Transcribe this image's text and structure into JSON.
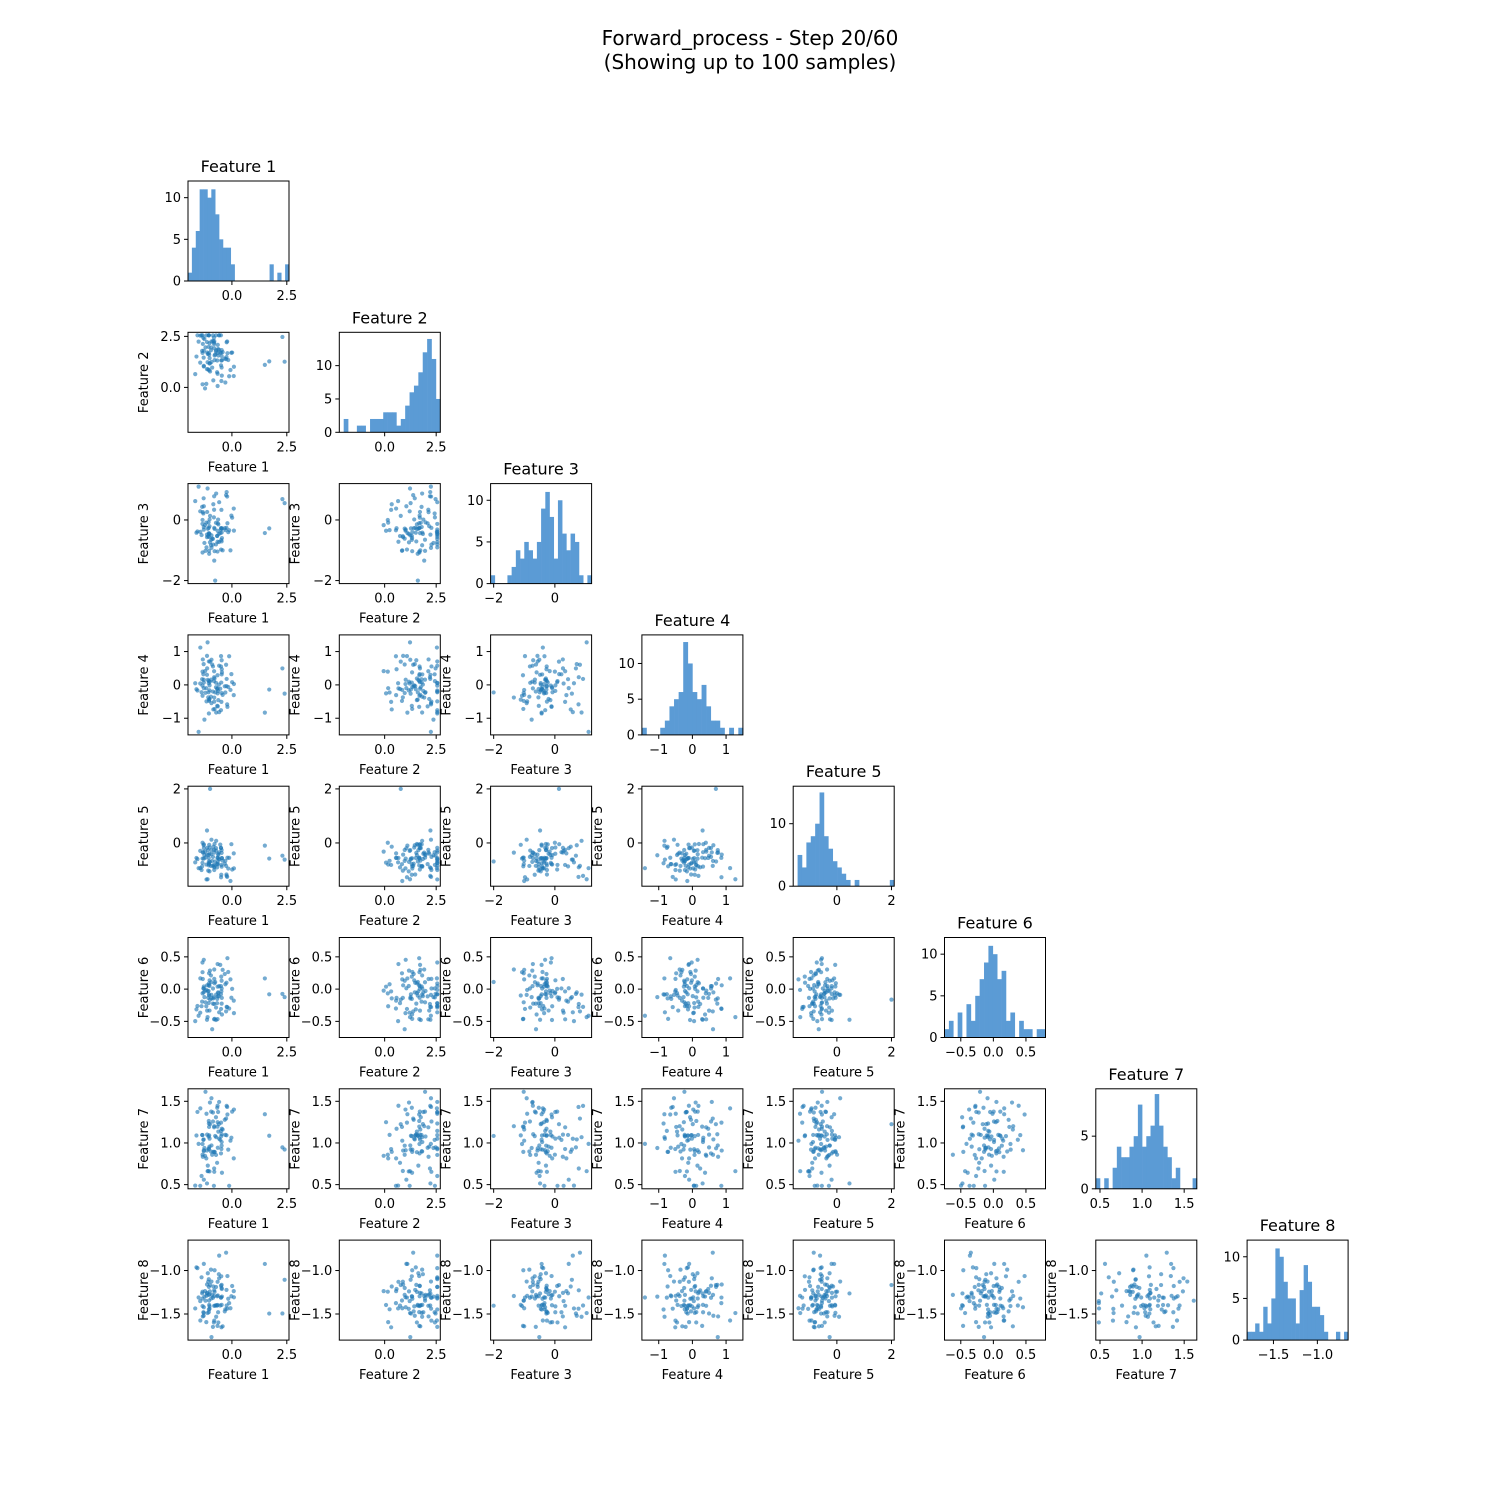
{
  "figure": {
    "title_line1": "Forward_process - Step 20/60",
    "title_line2": "(Showing up to 100 samples)"
  },
  "chart_data": {
    "type": "scatter",
    "layout": "pair-plot-lower-triangle",
    "n_samples": 100,
    "bar_color": "#5b9bd5",
    "point_color": "#1f77b4",
    "features": [
      {
        "name": "Feature 1",
        "range": [
          -2.0,
          2.6
        ],
        "ticks": [
          0.0,
          2.5
        ],
        "tick_labels": [
          "0.0",
          "2.5"
        ],
        "mean": -0.8,
        "std": 0.45,
        "outliers": [
          1.5,
          1.7,
          2.3,
          2.4
        ],
        "hist": {
          "ticks": [
            0,
            5,
            10
          ],
          "ymax": 12,
          "counts": [
            1,
            4,
            6,
            11,
            11,
            10,
            11,
            8,
            5,
            4,
            4,
            2,
            0,
            0,
            0,
            0,
            0,
            0,
            0,
            0,
            0,
            2,
            0,
            1,
            0,
            2
          ]
        }
      },
      {
        "name": "Feature 2",
        "range": [
          -2.2,
          2.7
        ],
        "ticks": [
          0.0,
          2.5
        ],
        "tick_labels": [
          "0.0",
          "2.5"
        ],
        "mean": 1.5,
        "std": 0.9,
        "outliers": [],
        "hist": {
          "ticks": [
            0,
            5,
            10
          ],
          "ymax": 15,
          "counts": [
            0,
            2,
            0,
            0,
            1,
            1,
            0,
            2,
            2,
            2,
            3,
            3,
            3,
            1,
            2,
            4,
            6,
            7,
            9,
            12,
            14,
            11,
            5
          ]
        }
      },
      {
        "name": "Feature 3",
        "range": [
          -2.1,
          1.2
        ],
        "ticks": [
          -2,
          0
        ],
        "tick_labels": [
          "−2",
          "0"
        ],
        "mean": -0.3,
        "std": 0.55,
        "outliers": [],
        "hist": {
          "ticks": [
            0,
            5,
            10
          ],
          "ymax": 12,
          "counts": [
            1,
            0,
            0,
            0,
            1,
            2,
            4,
            3,
            5,
            4,
            3,
            5,
            9,
            11,
            8,
            3,
            10,
            6,
            4,
            6,
            5,
            1,
            0,
            1
          ]
        }
      },
      {
        "name": "Feature 4",
        "range": [
          -1.5,
          1.5
        ],
        "ticks": [
          -1,
          0,
          1
        ],
        "tick_labels": [
          "−1",
          "0",
          "1"
        ],
        "mean": 0.0,
        "std": 0.45,
        "outliers": [],
        "hist": {
          "ticks": [
            0,
            5,
            10
          ],
          "ymax": 14,
          "counts": [
            1,
            0,
            0,
            0,
            1,
            2,
            4,
            5,
            6,
            13,
            10,
            6,
            5,
            7,
            4,
            2,
            2,
            1,
            0,
            1,
            0,
            1
          ]
        }
      },
      {
        "name": "Feature 5",
        "range": [
          -1.6,
          2.1
        ],
        "ticks": [
          0,
          2
        ],
        "tick_labels": [
          "0",
          "2"
        ],
        "mean": -0.6,
        "std": 0.35,
        "outliers": [
          2.0
        ],
        "hist": {
          "ticks": [
            0,
            10
          ],
          "ymax": 16,
          "counts": [
            0,
            5,
            3,
            7,
            8,
            10,
            15,
            8,
            6,
            4,
            3,
            2,
            1,
            0,
            1,
            0,
            0,
            0,
            0,
            0,
            0,
            0,
            1
          ]
        }
      },
      {
        "name": "Feature 6",
        "range": [
          -0.75,
          0.8
        ],
        "ticks": [
          -0.5,
          0.0,
          0.5
        ],
        "tick_labels": [
          "−0.5",
          "0.0",
          "0.5"
        ],
        "mean": -0.05,
        "std": 0.25,
        "outliers": [],
        "hist": {
          "ticks": [
            0,
            5,
            10
          ],
          "ymax": 12,
          "counts": [
            1,
            2,
            0,
            3,
            0,
            4,
            2,
            5,
            7,
            9,
            11,
            10,
            7,
            8,
            2,
            3,
            0,
            2,
            1,
            1,
            0,
            1,
            1
          ]
        }
      },
      {
        "name": "Feature 7",
        "range": [
          0.45,
          1.65
        ],
        "ticks": [
          0.5,
          1.0,
          1.5
        ],
        "tick_labels": [
          "0.5",
          "1.0",
          "1.5"
        ],
        "mean": 1.05,
        "std": 0.25,
        "outliers": [],
        "hist": {
          "ticks": [
            0,
            5
          ],
          "ymax": 9.5,
          "counts": [
            1,
            0,
            1,
            0,
            2,
            4,
            3,
            3,
            4,
            5,
            8,
            4,
            5,
            6,
            9,
            6,
            4,
            3,
            1,
            2,
            0,
            0,
            0,
            1
          ]
        }
      },
      {
        "name": "Feature 8",
        "range": [
          -1.8,
          -0.65
        ],
        "ticks": [
          -1.5,
          -1.0
        ],
        "tick_labels": [
          "−1.5",
          "−1.0"
        ],
        "mean": -1.3,
        "std": 0.22,
        "outliers": [],
        "hist": {
          "ticks": [
            0,
            5,
            10
          ],
          "ymax": 12,
          "counts": [
            1,
            1,
            2,
            1,
            4,
            2,
            5,
            11,
            10,
            7,
            5,
            5,
            2,
            6,
            9,
            7,
            4,
            4,
            3,
            1,
            0,
            0,
            1,
            0,
            1
          ]
        }
      }
    ]
  }
}
